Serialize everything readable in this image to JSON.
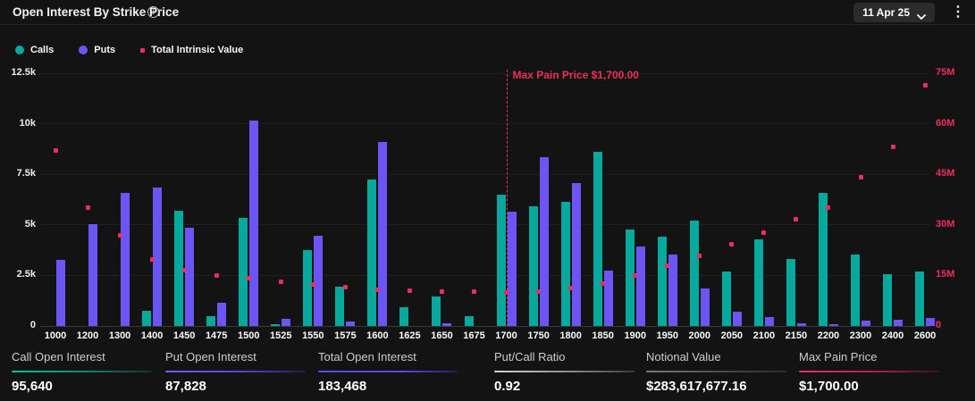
{
  "header": {
    "title": "Open Interest By Strike Price",
    "date_selector": "11 Apr 25"
  },
  "legend": [
    {
      "label": "Calls",
      "color": "#07a99d",
      "shape": "circle"
    },
    {
      "label": "Puts",
      "color": "#6c55f5",
      "shape": "circle"
    },
    {
      "label": "Total Intrinsic Value",
      "color": "#ed2e5c",
      "shape": "square"
    }
  ],
  "chart_data": {
    "type": "bar",
    "title": "Open Interest By Strike Price",
    "categories": [
      "1000",
      "1200",
      "1300",
      "1400",
      "1450",
      "1475",
      "1500",
      "1525",
      "1550",
      "1575",
      "1600",
      "1625",
      "1650",
      "1675",
      "1700",
      "1750",
      "1800",
      "1850",
      "1900",
      "1950",
      "2000",
      "2050",
      "2100",
      "2150",
      "2200",
      "2300",
      "2400",
      "2600"
    ],
    "series": [
      {
        "name": "Calls",
        "type": "bar",
        "axis": "left",
        "color": "#07a99d",
        "values": [
          0,
          0,
          0,
          750,
          5700,
          500,
          5350,
          100,
          3750,
          1950,
          7250,
          950,
          1450,
          500,
          6500,
          5900,
          6150,
          8600,
          4750,
          4400,
          5200,
          2700,
          4300,
          3300,
          6600,
          3550,
          2550,
          2700
        ]
      },
      {
        "name": "Puts",
        "type": "bar",
        "axis": "left",
        "color": "#6c55f5",
        "values": [
          3250,
          5050,
          6600,
          6850,
          4850,
          1150,
          10150,
          350,
          4450,
          220,
          9100,
          0,
          130,
          0,
          5650,
          8350,
          7050,
          2750,
          3950,
          3550,
          1850,
          700,
          450,
          150,
          100,
          260,
          290,
          400
        ]
      },
      {
        "name": "Total Intrinsic Value",
        "type": "scatter",
        "axis": "right",
        "color": "#ed2e5c",
        "unit": "M",
        "values": [
          52,
          35,
          27,
          19.8,
          16.5,
          15,
          14.1,
          13.2,
          12.2,
          11.4,
          10.7,
          10.4,
          10.2,
          10.1,
          10,
          10.3,
          11.2,
          12.7,
          15,
          17.8,
          20.8,
          24.2,
          27.6,
          31.6,
          35.2,
          44.2,
          53.1,
          71.5
        ]
      }
    ],
    "left_axis": {
      "ticks": [
        "0",
        "2.5k",
        "5k",
        "7.5k",
        "10k",
        "12.5k"
      ],
      "min": 0,
      "max": 12500
    },
    "right_axis": {
      "ticks": [
        "0",
        "15M",
        "30M",
        "45M",
        "60M",
        "75M"
      ],
      "min": 0,
      "max": 75,
      "color": "#ed2e5c"
    },
    "grid": true,
    "legend_position": "top-left",
    "annotation": {
      "label": "Max Pain Price $1,700.00",
      "category": "1700",
      "color": "#ed2e5c",
      "style": "dashed-vertical"
    }
  },
  "stats": [
    {
      "label": "Call Open Interest",
      "value": "95,640",
      "accent": "teal"
    },
    {
      "label": "Put Open Interest",
      "value": "87,828",
      "accent": "purple"
    },
    {
      "label": "Total Open Interest",
      "value": "183,468",
      "accent": "indigo"
    },
    {
      "label": "Put/Call Ratio",
      "value": "0.92",
      "accent": "lightgray"
    },
    {
      "label": "Notional Value",
      "value": "$283,617,677.16",
      "accent": "gray"
    },
    {
      "label": "Max Pain Price",
      "value": "$1,700.00",
      "accent": "crimson"
    }
  ]
}
